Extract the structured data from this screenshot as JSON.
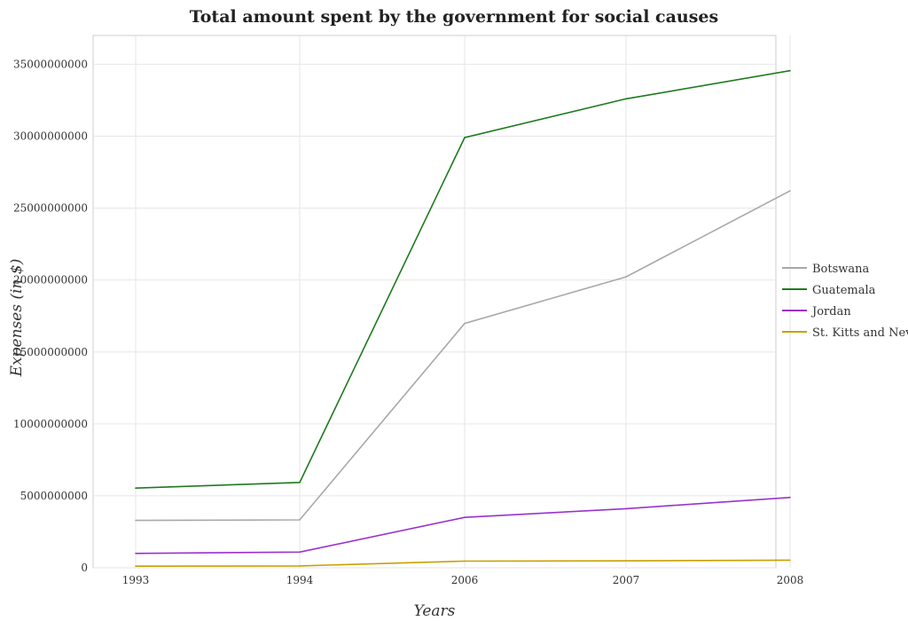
{
  "chart_data": {
    "type": "line",
    "title": "Total amount spent by the government for social causes",
    "xlabel": "Years",
    "ylabel": "Expenses (in $)",
    "categories": [
      "1993",
      "1994",
      "2006",
      "2007",
      "2008"
    ],
    "ylim": [
      0,
      37000000000
    ],
    "yticks": [
      0,
      5000000000,
      10000000000,
      15000000000,
      20000000000,
      25000000000,
      30000000000,
      35000000000
    ],
    "ytick_labels": [
      "0",
      "5000000000",
      "10000000000",
      "15000000000",
      "20000000000",
      "25000000000",
      "30000000000",
      "35000000000"
    ],
    "grid": true,
    "legend_position": "right",
    "series": [
      {
        "name": "Botswana",
        "color": "#a8a8a8",
        "values": [
          3290000000,
          3330000000,
          16980000000,
          20220000000,
          26200000000
        ]
      },
      {
        "name": "Guatemala",
        "color": "#1e7a1e",
        "values": [
          5540000000,
          5930000000,
          29900000000,
          32600000000,
          34550000000
        ]
      },
      {
        "name": "Jordan",
        "color": "#9932cc",
        "values": [
          1000000000,
          1090000000,
          3500000000,
          4110000000,
          4890000000
        ]
      },
      {
        "name": "St. Kitts and Nevis",
        "color": "#c8a000",
        "values": [
          110000000,
          130000000,
          460000000,
          480000000,
          530000000
        ]
      }
    ]
  }
}
